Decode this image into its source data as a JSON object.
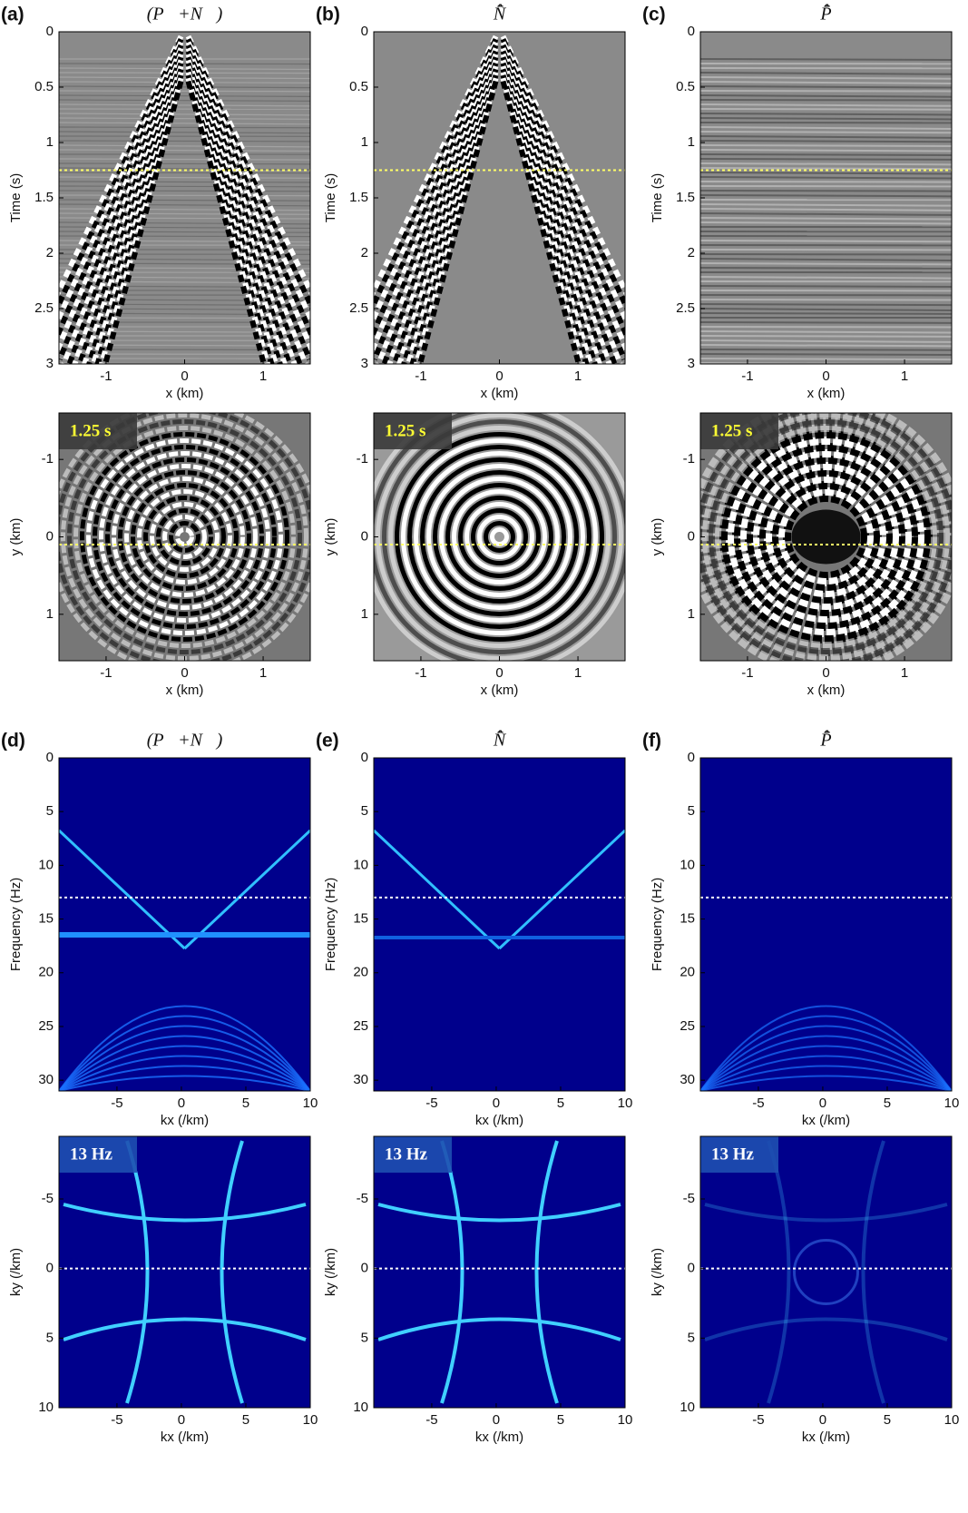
{
  "chart_data": [
    {
      "type": "image",
      "panel": "(a)",
      "title": "(P⃗+N⃗)",
      "xlabel": "x (km)",
      "ylabel": "Time (s)",
      "colormap": "gray",
      "xlim": [
        -1.6,
        1.6
      ],
      "ylim": [
        0,
        3
      ],
      "y_inverted": true,
      "xticks": [
        -1,
        0,
        1
      ],
      "yticks": [
        0,
        0.5,
        1,
        1.5,
        2,
        2.5,
        3
      ],
      "hline": 1.25,
      "hline_color": "#ffff66"
    },
    {
      "type": "image",
      "panel": "(b)",
      "title": "N̂̄",
      "xlabel": "x (km)",
      "ylabel": "Time (s)",
      "colormap": "gray",
      "xlim": [
        -1.6,
        1.6
      ],
      "ylim": [
        0,
        3
      ],
      "y_inverted": true,
      "xticks": [
        -1,
        0,
        1
      ],
      "yticks": [
        0,
        0.5,
        1,
        1.5,
        2,
        2.5,
        3
      ],
      "hline": 1.25,
      "hline_color": "#ffff66"
    },
    {
      "type": "image",
      "panel": "(c)",
      "title": "P̂̄",
      "xlabel": "x (km)",
      "ylabel": "Time (s)",
      "colormap": "gray",
      "xlim": [
        -1.6,
        1.6
      ],
      "ylim": [
        0,
        3
      ],
      "y_inverted": true,
      "xticks": [
        -1,
        0,
        1
      ],
      "yticks": [
        0,
        0.5,
        1,
        1.5,
        2,
        2.5,
        3
      ],
      "hline": 1.25,
      "hline_color": "#ffff66"
    },
    {
      "type": "image",
      "annotation": "1.25 s",
      "xlabel": "x (km)",
      "ylabel": "y (km)",
      "colormap": "gray",
      "xlim": [
        -1.6,
        1.6
      ],
      "ylim": [
        -1.6,
        1.6
      ],
      "y_inverted": true,
      "xticks": [
        -1,
        0,
        1
      ],
      "yticks": [
        -1,
        0,
        1
      ],
      "hline": 0.1,
      "hline_color": "#ffff66"
    },
    {
      "type": "image",
      "annotation": "1.25 s",
      "xlabel": "x (km)",
      "ylabel": "y (km)",
      "colormap": "gray",
      "xlim": [
        -1.6,
        1.6
      ],
      "ylim": [
        -1.6,
        1.6
      ],
      "y_inverted": true,
      "xticks": [
        -1,
        0,
        1
      ],
      "yticks": [
        -1,
        0,
        1
      ],
      "hline": 0.1,
      "hline_color": "#ffff66"
    },
    {
      "type": "image",
      "annotation": "1.25 s",
      "xlabel": "x (km)",
      "ylabel": "y (km)",
      "colormap": "gray",
      "xlim": [
        -1.6,
        1.6
      ],
      "ylim": [
        -1.6,
        1.6
      ],
      "y_inverted": true,
      "xticks": [
        -1,
        0,
        1
      ],
      "yticks": [
        -1,
        0,
        1
      ],
      "hline": 0.1,
      "hline_color": "#ffff66"
    },
    {
      "type": "image",
      "panel": "(d)",
      "title": "(P⃗+N⃗)",
      "xlabel": "kx (/km)",
      "ylabel": "Frequency (Hz)",
      "colormap": "jet",
      "xlim": [
        -9.5,
        10
      ],
      "ylim": [
        0,
        31
      ],
      "y_inverted": true,
      "xticks": [
        -5,
        0,
        5,
        10
      ],
      "yticks": [
        0,
        5,
        10,
        15,
        20,
        25,
        30
      ],
      "hline": 13,
      "hline_color": "#ffffff"
    },
    {
      "type": "image",
      "panel": "(e)",
      "title": "N̂̄",
      "xlabel": "kx (/km)",
      "ylabel": "Frequency (Hz)",
      "colormap": "jet",
      "xlim": [
        -9.5,
        10
      ],
      "ylim": [
        0,
        31
      ],
      "y_inverted": true,
      "xticks": [
        -5,
        0,
        5,
        10
      ],
      "yticks": [
        0,
        5,
        10,
        15,
        20,
        25,
        30
      ],
      "hline": 13,
      "hline_color": "#ffffff"
    },
    {
      "type": "image",
      "panel": "(f)",
      "title": "P̂̄",
      "xlabel": "kx (/km)",
      "ylabel": "Frequency (Hz)",
      "colormap": "jet",
      "xlim": [
        -9.5,
        10
      ],
      "ylim": [
        0,
        31
      ],
      "y_inverted": true,
      "xticks": [
        -5,
        0,
        5,
        10
      ],
      "yticks": [
        0,
        5,
        10,
        15,
        20,
        25,
        30
      ],
      "hline": 13,
      "hline_color": "#ffffff"
    },
    {
      "type": "image",
      "annotation": "13 Hz",
      "xlabel": "kx (/km)",
      "ylabel": "ky (/km)",
      "colormap": "jet",
      "xlim": [
        -9.5,
        10
      ],
      "ylim": [
        -9.5,
        10
      ],
      "y_inverted": true,
      "xticks": [
        -5,
        0,
        5,
        10
      ],
      "yticks": [
        -5,
        0,
        5,
        10
      ],
      "hline": 0,
      "hline_color": "#ffffff"
    },
    {
      "type": "image",
      "annotation": "13 Hz",
      "xlabel": "kx (/km)",
      "ylabel": "ky (/km)",
      "colormap": "jet",
      "xlim": [
        -9.5,
        10
      ],
      "ylim": [
        -9.5,
        10
      ],
      "y_inverted": true,
      "xticks": [
        -5,
        0,
        5,
        10
      ],
      "yticks": [
        -5,
        0,
        5,
        10
      ],
      "hline": 0,
      "hline_color": "#ffffff"
    },
    {
      "type": "image",
      "annotation": "13 Hz",
      "xlabel": "kx (/km)",
      "ylabel": "ky (/km)",
      "colormap": "jet",
      "xlim": [
        -9.5,
        10
      ],
      "ylim": [
        -9.5,
        10
      ],
      "y_inverted": true,
      "xticks": [
        -5,
        0,
        5,
        10
      ],
      "yticks": [
        -5,
        0,
        5,
        10
      ],
      "hline": 0,
      "hline_color": "#ffffff"
    }
  ]
}
